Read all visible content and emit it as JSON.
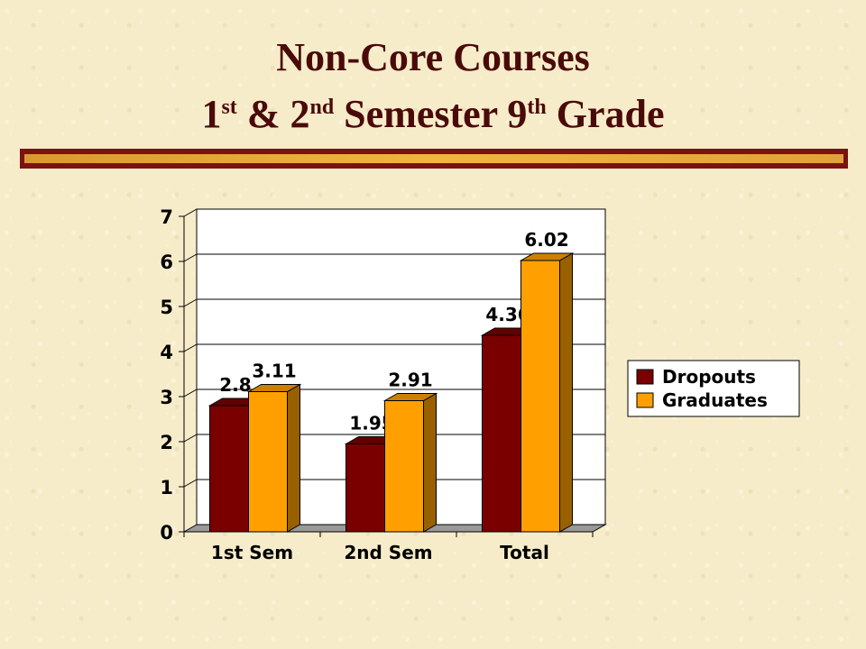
{
  "slide": {
    "title_line1": "Non-Core Courses",
    "title_line2_parts": [
      "1",
      "st",
      " & 2",
      "nd",
      " Semester 9",
      "th",
      " Grade"
    ]
  },
  "colors": {
    "dropouts": "#7a0000",
    "graduates": "#ffa000",
    "title": "#4a0a0a",
    "rule_outer": "#7a1212",
    "rule_inner": "#f0b640"
  },
  "chart_data": {
    "type": "bar",
    "categories": [
      "1st Sem",
      "2nd Sem",
      "Total"
    ],
    "series": [
      {
        "name": "Dropouts",
        "values": [
          2.8,
          1.95,
          4.36
        ],
        "labels": [
          "2.8",
          "1.95",
          "4.36"
        ]
      },
      {
        "name": "Graduates",
        "values": [
          3.11,
          2.91,
          6.02
        ],
        "labels": [
          "3.11",
          "2.91",
          "6.02"
        ]
      }
    ],
    "ylim": [
      0,
      7
    ],
    "yticks": [
      "0",
      "1",
      "2",
      "3",
      "4",
      "5",
      "6",
      "7"
    ],
    "grid": true,
    "legend": "right",
    "style": "3d-clustered-column"
  }
}
